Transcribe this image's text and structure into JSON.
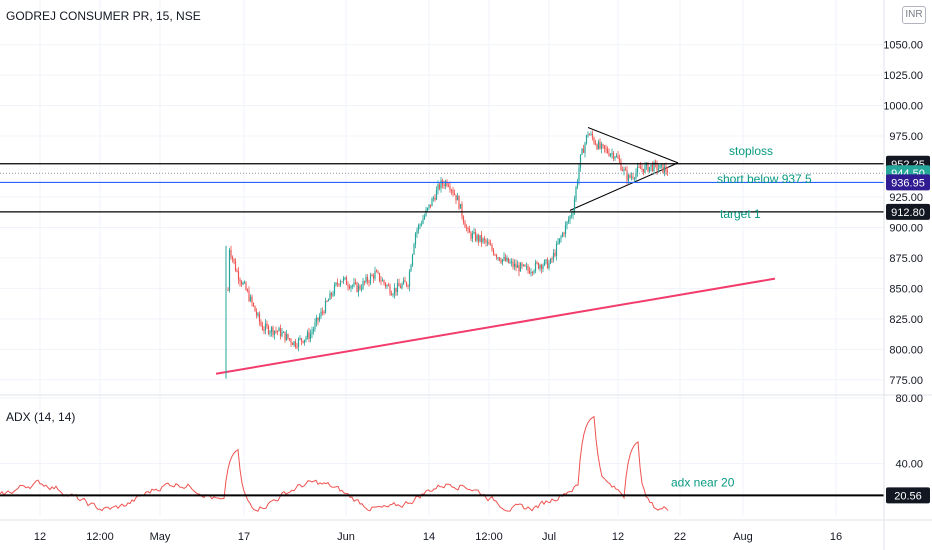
{
  "header": {
    "symbol": "GODREJ CONSUMER PR, 15, NSE",
    "currency": "INR"
  },
  "price_axis": {
    "ticks": [
      "1050.00",
      "1025.00",
      "1000.00",
      "975.00",
      "925.00",
      "900.00",
      "875.00",
      "850.00",
      "825.00",
      "800.00",
      "775.00"
    ]
  },
  "adx_axis": {
    "ticks": [
      "80.00",
      "40.00"
    ]
  },
  "time_axis": {
    "ticks": [
      "12",
      "12:00",
      "May",
      "17",
      "Jun",
      "14",
      "12:00",
      "Jul",
      "12",
      "22",
      "Aug",
      "16"
    ]
  },
  "levels": [
    {
      "name": "stoploss-line",
      "price": 952.25,
      "label": "952.25",
      "color": "#000000",
      "badge_bg": "#131722"
    },
    {
      "name": "current-price",
      "price": 944.5,
      "label": "944.50",
      "color": "#9598a1",
      "badge_bg": "#26a69a"
    },
    {
      "name": "short-line",
      "price": 936.95,
      "label": "936.95",
      "color": "#2962ff",
      "badge_bg": "#311b92"
    },
    {
      "name": "target-line",
      "price": 912.8,
      "label": "912.80",
      "color": "#000000",
      "badge_bg": "#131722"
    }
  ],
  "annotations": {
    "stoploss": "stoploss",
    "short": "short below 937.5",
    "target": "target 1",
    "adx": "adx near 20"
  },
  "adx_level": {
    "value": 20.56,
    "label": "20.56"
  },
  "indicator": {
    "name": "ADX (14, 14)"
  },
  "colors": {
    "up": "#26a69a",
    "down": "#ef5350",
    "trend": "#f23c6c",
    "adx": "#ef5350",
    "text_annot": "#089981"
  },
  "chart_data": {
    "type": "candlestick",
    "price_range": [
      765,
      1062
    ],
    "adx_range": [
      8,
      80
    ],
    "trendline_support": [
      [
        780,
        777
      ],
      [
        858,
        931
      ]
    ],
    "triangle": {
      "upper_start": 982,
      "apex": 953,
      "lower_start": 914
    }
  }
}
